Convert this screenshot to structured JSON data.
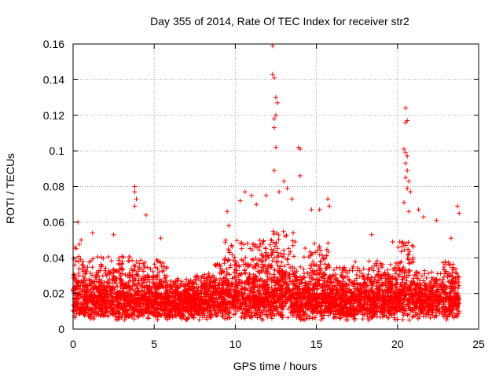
{
  "chart_data": {
    "type": "scatter",
    "title": "Day 355 of 2014, Rate Of TEC Index for receiver str2",
    "xlabel": "GPS time / hours",
    "ylabel": "ROTI / TECUs",
    "xlim": [
      0,
      25
    ],
    "ylim": [
      0,
      0.16
    ],
    "xticks": [
      0,
      5,
      10,
      15,
      20,
      25
    ],
    "xtick_labels": [
      "0",
      "5",
      "10",
      "15",
      "20",
      "25"
    ],
    "yticks": [
      0,
      0.02,
      0.04,
      0.06,
      0.08,
      0.1,
      0.12,
      0.14,
      0.16
    ],
    "ytick_labels": [
      "0",
      "0.02",
      "0.04",
      "0.06",
      "0.08",
      "0.1",
      "0.12",
      "0.14",
      "0.16"
    ],
    "grid": true,
    "marker": "+",
    "color": "#ff0000",
    "notable_points": [
      {
        "x": 0.1,
        "y": 0.036
      },
      {
        "x": 0.3,
        "y": 0.06
      },
      {
        "x": 0.5,
        "y": 0.05
      },
      {
        "x": 1.2,
        "y": 0.054
      },
      {
        "x": 2.5,
        "y": 0.053
      },
      {
        "x": 3.8,
        "y": 0.08
      },
      {
        "x": 3.8,
        "y": 0.077
      },
      {
        "x": 3.9,
        "y": 0.073
      },
      {
        "x": 3.8,
        "y": 0.069
      },
      {
        "x": 4.5,
        "y": 0.064
      },
      {
        "x": 5.4,
        "y": 0.051
      },
      {
        "x": 9.5,
        "y": 0.066
      },
      {
        "x": 9.6,
        "y": 0.058
      },
      {
        "x": 10.3,
        "y": 0.072
      },
      {
        "x": 10.6,
        "y": 0.077
      },
      {
        "x": 11.0,
        "y": 0.075
      },
      {
        "x": 11.3,
        "y": 0.07
      },
      {
        "x": 11.9,
        "y": 0.075
      },
      {
        "x": 12.3,
        "y": 0.159
      },
      {
        "x": 12.3,
        "y": 0.143
      },
      {
        "x": 12.4,
        "y": 0.141
      },
      {
        "x": 12.5,
        "y": 0.13
      },
      {
        "x": 12.6,
        "y": 0.127
      },
      {
        "x": 12.5,
        "y": 0.12
      },
      {
        "x": 12.4,
        "y": 0.118
      },
      {
        "x": 12.4,
        "y": 0.113
      },
      {
        "x": 12.5,
        "y": 0.102
      },
      {
        "x": 12.4,
        "y": 0.089
      },
      {
        "x": 12.7,
        "y": 0.077
      },
      {
        "x": 13.0,
        "y": 0.083
      },
      {
        "x": 13.2,
        "y": 0.079
      },
      {
        "x": 13.5,
        "y": 0.073
      },
      {
        "x": 13.9,
        "y": 0.102
      },
      {
        "x": 14.0,
        "y": 0.101
      },
      {
        "x": 14.0,
        "y": 0.086
      },
      {
        "x": 14.7,
        "y": 0.067
      },
      {
        "x": 15.2,
        "y": 0.067
      },
      {
        "x": 15.7,
        "y": 0.073
      },
      {
        "x": 15.8,
        "y": 0.069
      },
      {
        "x": 18.4,
        "y": 0.053
      },
      {
        "x": 19.7,
        "y": 0.049
      },
      {
        "x": 20.3,
        "y": 0.049
      },
      {
        "x": 20.5,
        "y": 0.124
      },
      {
        "x": 20.5,
        "y": 0.116
      },
      {
        "x": 20.6,
        "y": 0.117
      },
      {
        "x": 20.4,
        "y": 0.101
      },
      {
        "x": 20.5,
        "y": 0.099
      },
      {
        "x": 20.6,
        "y": 0.097
      },
      {
        "x": 20.5,
        "y": 0.093
      },
      {
        "x": 20.6,
        "y": 0.089
      },
      {
        "x": 20.5,
        "y": 0.085
      },
      {
        "x": 20.7,
        "y": 0.083
      },
      {
        "x": 20.6,
        "y": 0.079
      },
      {
        "x": 20.8,
        "y": 0.077
      },
      {
        "x": 20.4,
        "y": 0.071
      },
      {
        "x": 20.7,
        "y": 0.066
      },
      {
        "x": 21.3,
        "y": 0.067
      },
      {
        "x": 21.6,
        "y": 0.063
      },
      {
        "x": 22.4,
        "y": 0.061
      },
      {
        "x": 23.3,
        "y": 0.051
      },
      {
        "x": 23.7,
        "y": 0.069
      },
      {
        "x": 23.8,
        "y": 0.065
      }
    ]
  }
}
